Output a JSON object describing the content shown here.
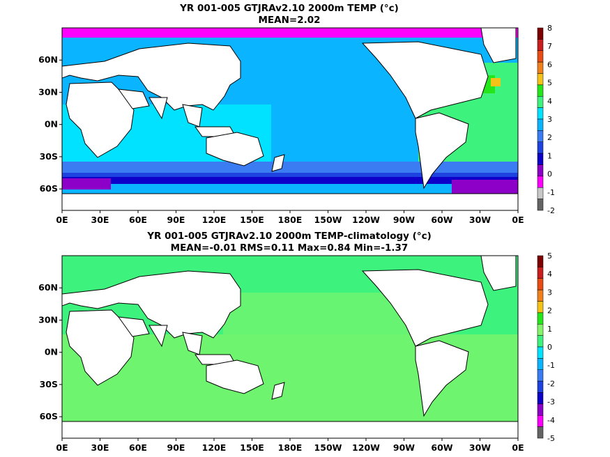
{
  "panel1": {
    "title_line1": "YR 001-005 GTJRAv2.10 2000m TEMP (°c)",
    "title_line2": "MEAN=2.02",
    "colorbar": {
      "labels": [
        "8",
        "7",
        "6",
        "5",
        "4",
        "3",
        "2",
        "1",
        "0",
        "-1",
        "-2"
      ],
      "colors": [
        "#7f0000",
        "#c81e1e",
        "#e84c14",
        "#f07f1e",
        "#f5c218",
        "#24e61a",
        "#3ef27e",
        "#00e2ff",
        "#0ab4ff",
        "#3b7cf2",
        "#1e42e0",
        "#0d00c9",
        "#8c00c8",
        "#ff00ff",
        "#c8c8c8",
        "#646464"
      ]
    }
  },
  "panel2": {
    "title_line1": "YR 001-005 GTJRAv2.10 2000m TEMP-climatology (°c)",
    "title_line2": "MEAN=-0.01   RMS=0.11   Max=0.84   Min=-1.37",
    "colorbar": {
      "labels": [
        "5",
        "4",
        "3",
        "2",
        "1",
        "0",
        "-1",
        "-2",
        "-3",
        "-4",
        "-5"
      ],
      "colors": [
        "#7f0000",
        "#c81e1e",
        "#e84c14",
        "#f07f1e",
        "#f5c218",
        "#24e61a",
        "#84f56a",
        "#3ef27e",
        "#00e2ff",
        "#0ab4ff",
        "#3b7cf2",
        "#1e42e0",
        "#0d00c9",
        "#8c00c8",
        "#ff00ff",
        "#646464"
      ]
    }
  },
  "axes": {
    "x_ticks": [
      "0E",
      "30E",
      "60E",
      "90E",
      "120E",
      "150E",
      "180E",
      "150W",
      "120W",
      "90W",
      "60W",
      "30W",
      "0E"
    ],
    "y_ticks": [
      "60N",
      "30N",
      "0N",
      "30S",
      "60S"
    ]
  }
}
